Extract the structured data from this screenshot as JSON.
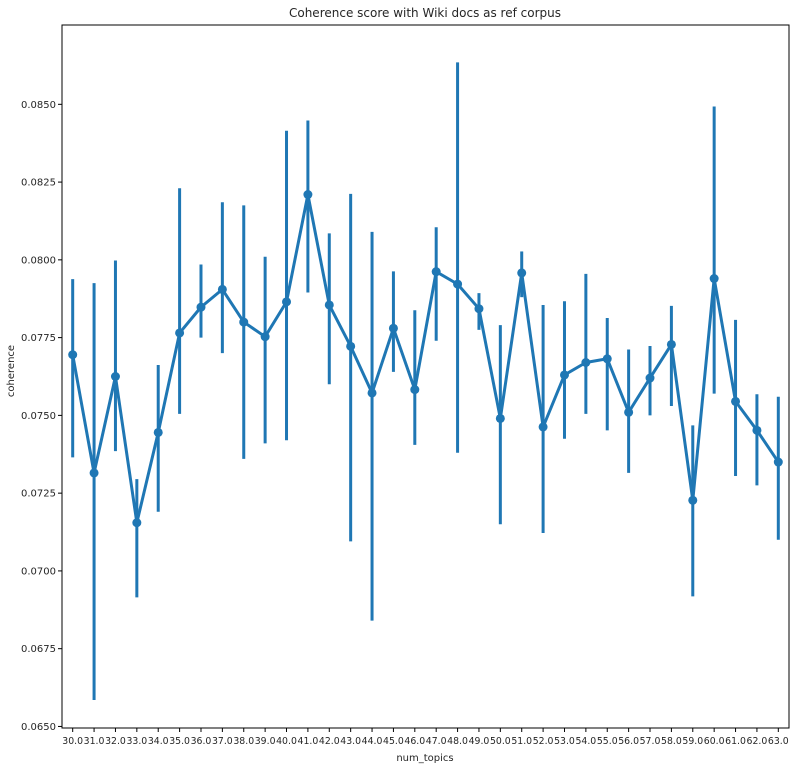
{
  "chart_data": {
    "type": "line",
    "title": "Coherence score with Wiki docs as ref corpus",
    "xlabel": "num_topics",
    "ylabel": "coherence",
    "categories": [
      "30.0",
      "31.0",
      "32.0",
      "33.0",
      "34.0",
      "35.0",
      "36.0",
      "37.0",
      "38.0",
      "39.0",
      "40.0",
      "41.0",
      "42.0",
      "43.0",
      "44.0",
      "45.0",
      "46.0",
      "47.0",
      "48.0",
      "49.0",
      "50.0",
      "51.0",
      "52.0",
      "53.0",
      "54.0",
      "55.0",
      "56.0",
      "57.0",
      "58.0",
      "59.0",
      "60.0",
      "61.0",
      "62.0",
      "63.0"
    ],
    "values": [
      0.07695,
      0.07315,
      0.07625,
      0.07155,
      0.07445,
      0.07765,
      0.07848,
      0.07905,
      0.078,
      0.07753,
      0.07865,
      0.0821,
      0.07855,
      0.07722,
      0.07572,
      0.0778,
      0.07583,
      0.07962,
      0.07922,
      0.07843,
      0.0749,
      0.07958,
      0.07463,
      0.0763,
      0.0767,
      0.07682,
      0.0751,
      0.0762,
      0.07728,
      0.07227,
      0.0794,
      0.07545,
      0.07452,
      0.0735
    ],
    "ci_low": [
      0.07365,
      0.06585,
      0.07385,
      0.06915,
      0.0719,
      0.07505,
      0.0775,
      0.077,
      0.0736,
      0.0741,
      0.0742,
      0.07895,
      0.076,
      0.07095,
      0.0684,
      0.0764,
      0.07405,
      0.0774,
      0.0738,
      0.07775,
      0.0715,
      0.0788,
      0.07122,
      0.07425,
      0.07505,
      0.07452,
      0.07315,
      0.075,
      0.0753,
      0.06918,
      0.0757,
      0.07305,
      0.07275,
      0.071
    ],
    "ci_high": [
      0.07938,
      0.07925,
      0.07998,
      0.07295,
      0.07662,
      0.0823,
      0.07985,
      0.08185,
      0.08175,
      0.0801,
      0.08415,
      0.08448,
      0.08085,
      0.08212,
      0.0809,
      0.07963,
      0.07838,
      0.08105,
      0.08635,
      0.07893,
      0.0779,
      0.08027,
      0.07855,
      0.07867,
      0.07955,
      0.07813,
      0.07712,
      0.07723,
      0.07852,
      0.07468,
      0.08493,
      0.07807,
      0.07568,
      0.0756
    ],
    "yticks": [
      "0.0650",
      "0.0675",
      "0.0700",
      "0.0725",
      "0.0750",
      "0.0775",
      "0.0800",
      "0.0825",
      "0.0850"
    ],
    "ylim": [
      0.06495,
      0.08755
    ],
    "grid": false,
    "color": "#1f77b4"
  }
}
